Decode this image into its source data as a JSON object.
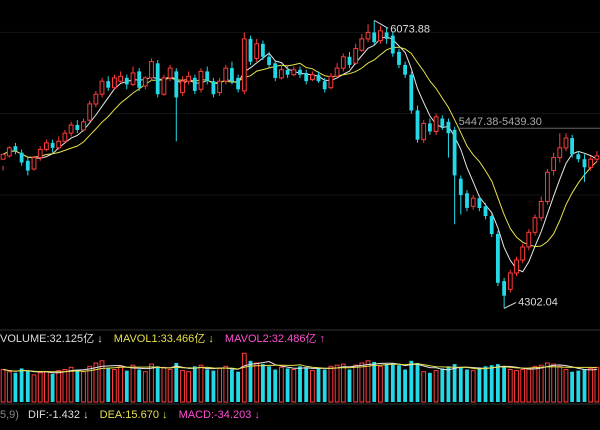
{
  "price_panel": {
    "high_label": "6073.88",
    "low_label": "4302.04",
    "range_label": "5447.38-5439.30"
  },
  "volume_panel": {
    "volume_text": "VOLUME:32.125亿",
    "volume_arrow": "↓",
    "mavol1_text": "MAVOL1:33.466亿",
    "mavol1_arrow": "↓",
    "mavol2_text": "MAVOL2:32.486亿",
    "mavol2_arrow": "↑"
  },
  "macd_panel": {
    "params_text": "5,9)",
    "dif_text": "DIF:-1.432",
    "dif_arrow": "↓",
    "dea_text": "DEA:15.670",
    "dea_arrow": "↓",
    "macd_text": "MACD:-34.203",
    "macd_arrow": "↓"
  },
  "colors": {
    "background": "#000000",
    "up": "#ff3b3b",
    "down": "#23d9e8",
    "ma_white": "#e8e8e8",
    "ma_yellow": "#e6e04a",
    "text": "#dddddd",
    "mavol1": "#e6e04a",
    "mavol2": "#ff4dd2",
    "dif_color": "#dddddd",
    "dea_color": "#e6e04a",
    "macd_color": "#ff4dd2",
    "grid": "#333333"
  },
  "chart_data": {
    "type": "candlestick",
    "y_range": [
      4200,
      6150
    ],
    "candles": [
      [
        5220,
        5250,
        5180,
        5150
      ],
      [
        5240,
        5290,
        5300,
        5230
      ],
      [
        5300,
        5270,
        5320,
        5250
      ],
      [
        5260,
        5200,
        5280,
        5180
      ],
      [
        5210,
        5150,
        5230,
        5120
      ],
      [
        5160,
        5230,
        5240,
        5150
      ],
      [
        5230,
        5280,
        5300,
        5210
      ],
      [
        5280,
        5320,
        5340,
        5270
      ],
      [
        5320,
        5290,
        5340,
        5260
      ],
      [
        5290,
        5330,
        5360,
        5280
      ],
      [
        5330,
        5380,
        5400,
        5320
      ],
      [
        5380,
        5430,
        5450,
        5360
      ],
      [
        5430,
        5400,
        5460,
        5380
      ],
      [
        5400,
        5450,
        5470,
        5390
      ],
      [
        5460,
        5560,
        5580,
        5450
      ],
      [
        5560,
        5620,
        5640,
        5540
      ],
      [
        5620,
        5700,
        5720,
        5600
      ],
      [
        5700,
        5660,
        5730,
        5640
      ],
      [
        5660,
        5720,
        5740,
        5650
      ],
      [
        5700,
        5730,
        5760,
        5690
      ],
      [
        5720,
        5680,
        5740,
        5650
      ],
      [
        5680,
        5750,
        5790,
        5670
      ],
      [
        5760,
        5660,
        5780,
        5640
      ],
      [
        5670,
        5720,
        5730,
        5650
      ],
      [
        5720,
        5820,
        5840,
        5700
      ],
      [
        5810,
        5620,
        5830,
        5600
      ],
      [
        5620,
        5720,
        5740,
        5610
      ],
      [
        5720,
        5780,
        5800,
        5700
      ],
      [
        5760,
        5600,
        5780,
        5330
      ],
      [
        5630,
        5700,
        5730,
        5610
      ],
      [
        5700,
        5730,
        5760,
        5680
      ],
      [
        5720,
        5640,
        5740,
        5620
      ],
      [
        5650,
        5760,
        5780,
        5630
      ],
      [
        5760,
        5700,
        5790,
        5680
      ],
      [
        5700,
        5620,
        5720,
        5600
      ],
      [
        5630,
        5700,
        5720,
        5610
      ],
      [
        5700,
        5780,
        5800,
        5680
      ],
      [
        5780,
        5700,
        5820,
        5680
      ],
      [
        5720,
        5650,
        5740,
        5630
      ],
      [
        5640,
        5960,
        6000,
        5620
      ],
      [
        5960,
        5820,
        5980,
        5800
      ],
      [
        5840,
        5930,
        5960,
        5820
      ],
      [
        5930,
        5850,
        5950,
        5830
      ],
      [
        5850,
        5800,
        5880,
        5780
      ],
      [
        5810,
        5720,
        5830,
        5700
      ],
      [
        5720,
        5770,
        5800,
        5710
      ],
      [
        5770,
        5740,
        5790,
        5720
      ],
      [
        5740,
        5770,
        5790,
        5730
      ],
      [
        5770,
        5740,
        5790,
        5720
      ],
      [
        5750,
        5700,
        5770,
        5680
      ],
      [
        5710,
        5740,
        5760,
        5700
      ],
      [
        5740,
        5700,
        5760,
        5690
      ],
      [
        5700,
        5650,
        5720,
        5630
      ],
      [
        5660,
        5730,
        5750,
        5650
      ],
      [
        5730,
        5780,
        5810,
        5720
      ],
      [
        5780,
        5850,
        5870,
        5760
      ],
      [
        5850,
        5800,
        5880,
        5780
      ],
      [
        5810,
        5900,
        5930,
        5800
      ],
      [
        5890,
        5960,
        5990,
        5880
      ],
      [
        5960,
        6000,
        6050,
        5940
      ],
      [
        6000,
        5940,
        6073,
        5920
      ],
      [
        5950,
        6010,
        6040,
        5930
      ],
      [
        6000,
        5960,
        6030,
        5930
      ],
      [
        5980,
        5870,
        6000,
        5850
      ],
      [
        5880,
        5800,
        5900,
        5780
      ],
      [
        5800,
        5740,
        5820,
        5720
      ],
      [
        5740,
        5520,
        5760,
        5500
      ],
      [
        5520,
        5340,
        5550,
        5320
      ],
      [
        5340,
        5440,
        5460,
        5320
      ],
      [
        5440,
        5390,
        5470,
        5370
      ],
      [
        5390,
        5480,
        5500,
        5370
      ],
      [
        5470,
        5420,
        5490,
        5400
      ],
      [
        5450,
        5380,
        5470,
        5230
      ],
      [
        5400,
        5120,
        5420,
        4820
      ],
      [
        5100,
        5000,
        5120,
        4880
      ],
      [
        5010,
        4920,
        5030,
        4900
      ],
      [
        4930,
        4980,
        5000,
        4910
      ],
      [
        4980,
        4920,
        5000,
        4900
      ],
      [
        4930,
        4870,
        4950,
        4850
      ],
      [
        4870,
        4760,
        4890,
        4740
      ],
      [
        4760,
        4460,
        4780,
        4440
      ],
      [
        4470,
        4380,
        4490,
        4302
      ],
      [
        4420,
        4520,
        4540,
        4400
      ],
      [
        4520,
        4600,
        4620,
        4500
      ],
      [
        4600,
        4680,
        4700,
        4580
      ],
      [
        4680,
        4770,
        4790,
        4660
      ],
      [
        4770,
        4860,
        4880,
        4750
      ],
      [
        4860,
        4960,
        4990,
        4840
      ],
      [
        4960,
        5140,
        5160,
        4940
      ],
      [
        5150,
        5230,
        5260,
        5120
      ],
      [
        5230,
        5290,
        5380,
        5200
      ],
      [
        5290,
        5350,
        5380,
        5270
      ],
      [
        5350,
        5250,
        5370,
        5230
      ],
      [
        5250,
        5220,
        5270,
        5200
      ],
      [
        5220,
        5170,
        5250,
        5080
      ],
      [
        5170,
        5220,
        5240,
        5150
      ],
      [
        5220,
        5240,
        5270,
        5200
      ]
    ],
    "high": 6073.88,
    "low": 4302.04,
    "reference_range": [
      5447.38,
      5439.3
    ],
    "volume": [
      30,
      28,
      27,
      31,
      29,
      25,
      27,
      28,
      26,
      29,
      30,
      32,
      30,
      28,
      33,
      36,
      38,
      31,
      30,
      33,
      29,
      34,
      30,
      28,
      35,
      33,
      32,
      30,
      36,
      29,
      28,
      33,
      34,
      30,
      29,
      31,
      33,
      30,
      28,
      45,
      38,
      36,
      35,
      33,
      30,
      32,
      31,
      30,
      33,
      32,
      29,
      31,
      30,
      33,
      34,
      35,
      30,
      34,
      36,
      38,
      37,
      33,
      35,
      36,
      34,
      30,
      38,
      36,
      28,
      27,
      29,
      31,
      33,
      35,
      32,
      30,
      29,
      31,
      33,
      34,
      35,
      32,
      30,
      29,
      30,
      31,
      33,
      34,
      36,
      35,
      33,
      30,
      28,
      29,
      30,
      31,
      32
    ],
    "mavol1": 33.466,
    "mavol2": 32.486
  }
}
